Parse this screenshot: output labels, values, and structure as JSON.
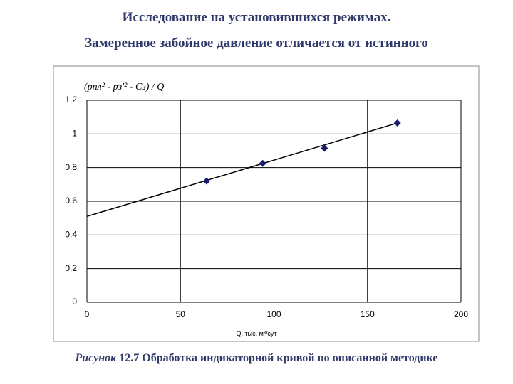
{
  "chart_data": {
    "type": "scatter",
    "title": [
      "Исследование на установившихся режимах.",
      "Замеренное забойное давление отличается от истинного"
    ],
    "y_label": "(pпл² - pз'² - Cз) / Q",
    "x_label": "Q, тыс. м³/сут",
    "caption_label": "Рисунок",
    "caption": "12.7 Обработка индикаторной кривой по описанной методике",
    "x": [
      64,
      94,
      127,
      166
    ],
    "series": [
      {
        "color": "#1a1a6e",
        "values": [
          0.72,
          0.825,
          0.915,
          1.065
        ]
      }
    ],
    "trendline": {
      "color": "#000000",
      "x": [
        0,
        166
      ],
      "values": [
        0.51,
        1.065
      ]
    },
    "xlim": [
      0,
      200
    ],
    "xticks": [
      0,
      50,
      100,
      150,
      200
    ],
    "ylim": [
      0,
      1.2
    ],
    "yticks": [
      0,
      0.2,
      0.4,
      0.6,
      0.8,
      1,
      1.2
    ],
    "grid": true
  }
}
